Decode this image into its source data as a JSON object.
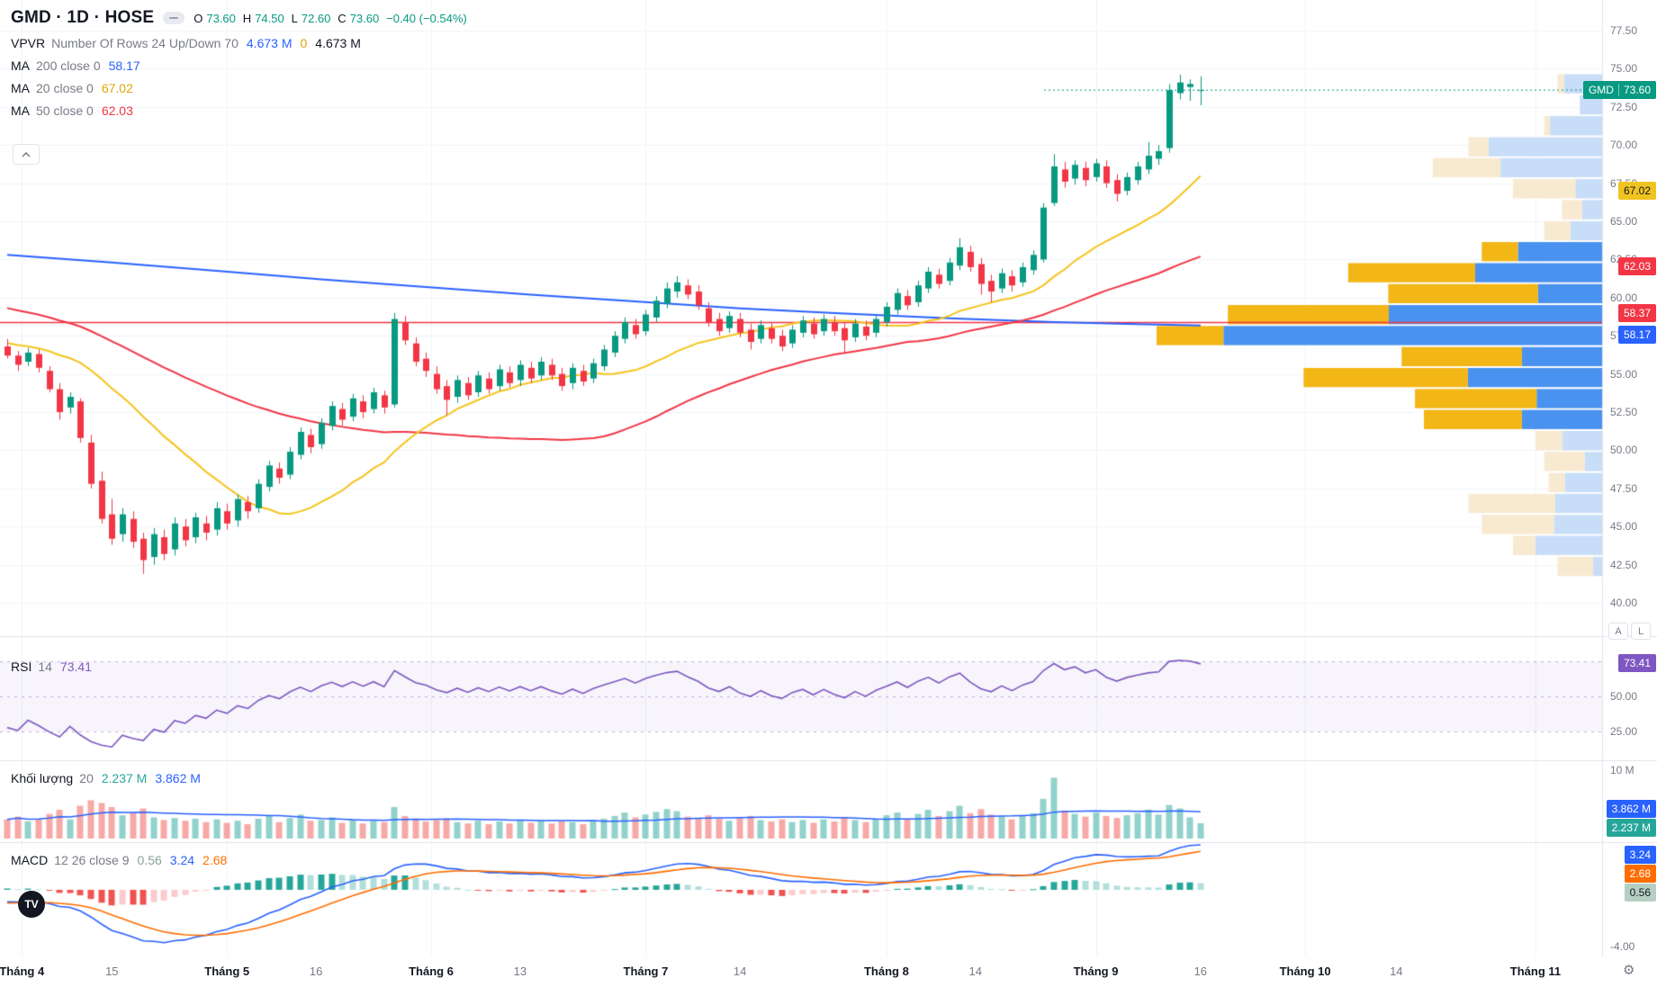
{
  "ui": {
    "title": "GMD · 1D · HOSE",
    "logo_text": "TV",
    "ohlc": {
      "o_label": "O",
      "o": "73.60",
      "h_label": "H",
      "h": "74.50",
      "l_label": "L",
      "l": "72.60",
      "c_label": "C",
      "c": "73.60",
      "change": "−0.40 (−0.54%)"
    },
    "indicators": {
      "vpvr": {
        "name": "VPVR",
        "params": "Number Of Rows 24 Up/Down 70",
        "v1": "4.673 M",
        "v2": "0",
        "v3": "4.673 M"
      },
      "ma200": {
        "name": "MA",
        "params": "200 close 0",
        "value": "58.17"
      },
      "ma20": {
        "name": "MA",
        "params": "20 close 0",
        "value": "67.02"
      },
      "ma50": {
        "name": "MA",
        "params": "50 close 0",
        "value": "62.03"
      },
      "rsi": {
        "name": "RSI",
        "params": "14",
        "value": "73.41"
      },
      "volume": {
        "name": "Khối lượng",
        "params": "20",
        "v1": "2.237 M",
        "v2": "3.862 M"
      },
      "macd": {
        "name": "MACD",
        "params": "12 26 close 9",
        "v1": "0.56",
        "v2": "3.24",
        "v3": "2.68"
      }
    },
    "value_colors": {
      "teal": "#089981",
      "blue": "#2962ff",
      "yellow": "#e0a400",
      "red": "#f23645",
      "purple": "#7e57c2",
      "orange": "#ff6d00",
      "green": "#26a69a",
      "dark": "#131722",
      "pale_green": "#85a294"
    },
    "axis_buttons": {
      "a": "A",
      "l": "L"
    },
    "badges": [
      {
        "panel": "price",
        "value": 73.6,
        "text": "73.60",
        "prefix": "GMD",
        "bg": "#089981",
        "fg": "#ffffff"
      },
      {
        "panel": "price",
        "value": 67.02,
        "text": "67.02",
        "bg": "#f0c420",
        "fg": "#131722"
      },
      {
        "panel": "price",
        "value": 62.03,
        "text": "62.03",
        "bg": "#f23645",
        "fg": "#ffffff"
      },
      {
        "panel": "price",
        "value": 58.37,
        "text": "58.37",
        "bg": "#f23645",
        "fg": "#ffffff",
        "dy": -10
      },
      {
        "panel": "price",
        "value": 58.17,
        "text": "58.17",
        "bg": "#2962ff",
        "fg": "#ffffff",
        "dy": 10
      },
      {
        "panel": "rsi",
        "value": 73.41,
        "text": "73.41",
        "bg": "#7e57c2",
        "fg": "#ffffff"
      },
      {
        "panel": "vol",
        "value": 3.862,
        "text": "3.862 M",
        "bg": "#2962ff",
        "fg": "#ffffff",
        "dy": -4
      },
      {
        "panel": "vol",
        "value": 2.237,
        "text": "2.237 M",
        "bg": "#26a69a",
        "fg": "#ffffff",
        "dy": 5
      },
      {
        "panel": "macd",
        "value": 3.24,
        "text": "3.24",
        "bg": "#2962ff",
        "fg": "#ffffff",
        "dy": 12
      },
      {
        "panel": "macd",
        "value": 2.68,
        "text": "2.68",
        "bg": "#ff6d00",
        "fg": "#ffffff",
        "dy": 24
      },
      {
        "panel": "macd",
        "value": 0.56,
        "text": "0.56",
        "bg": "#b6cfc3",
        "fg": "#131722",
        "dy": 12
      }
    ]
  },
  "chart_data": {
    "type": "candlestick",
    "symbol": "GMD",
    "timeframe": "1D",
    "exchange": "HOSE",
    "title": "GMD · 1D · HOSE",
    "last": {
      "open": 73.6,
      "high": 74.5,
      "low": 72.6,
      "close": 73.6,
      "change": -0.4,
      "change_pct": -0.54
    },
    "price_axis": {
      "min": 40.0,
      "max": 77.5,
      "step": 2.5
    },
    "levels": {
      "hline": 58.37,
      "close_line": 73.6
    },
    "price_labels": [
      "77.50",
      "75.00",
      "72.50",
      "70.00",
      "67.50",
      "65.00",
      "62.50",
      "60.00",
      "57.50",
      "55.00",
      "52.50",
      "50.00",
      "47.50",
      "45.00",
      "42.50",
      "40.00"
    ],
    "rsi_labels": [
      {
        "text": "50.00",
        "v": 50
      },
      {
        "text": "25.00",
        "v": 25
      }
    ],
    "vol_labels": [
      {
        "text": "10 M",
        "v": 10
      }
    ],
    "macd_labels": [
      {
        "text": "-4.00",
        "v": -4
      }
    ],
    "rsi_bands": [
      75,
      50,
      25
    ],
    "x_ticks": [
      {
        "i": 1.4,
        "label": "Tháng 4",
        "major": true
      },
      {
        "i": 10,
        "label": "15",
        "major": false
      },
      {
        "i": 21,
        "label": "Tháng 5",
        "major": true
      },
      {
        "i": 29.5,
        "label": "16",
        "major": false
      },
      {
        "i": 40.5,
        "label": "Tháng 6",
        "major": true
      },
      {
        "i": 49,
        "label": "13",
        "major": false
      },
      {
        "i": 61,
        "label": "Tháng 7",
        "major": true
      },
      {
        "i": 70,
        "label": "14",
        "major": false
      },
      {
        "i": 84,
        "label": "Tháng 8",
        "major": true
      },
      {
        "i": 92.5,
        "label": "14",
        "major": false
      },
      {
        "i": 104,
        "label": "Tháng 9",
        "major": true
      },
      {
        "i": 114,
        "label": "16",
        "major": false
      },
      {
        "i": 124,
        "label": "Tháng 10",
        "major": true
      },
      {
        "i": 132.7,
        "label": "14",
        "major": false
      },
      {
        "i": 146,
        "label": "Tháng 11",
        "major": true
      }
    ],
    "candles": [
      [
        56.8,
        57.3,
        56,
        56.2
      ],
      [
        56.2,
        56.5,
        55.2,
        55.6
      ],
      [
        55.8,
        56.7,
        55.5,
        56.4
      ],
      [
        56.3,
        56.6,
        55.1,
        55.4
      ],
      [
        55.2,
        55.5,
        53.8,
        54
      ],
      [
        54,
        54.4,
        52,
        52.5
      ],
      [
        52.8,
        53.8,
        52.4,
        53.5
      ],
      [
        53.2,
        53.4,
        50.5,
        50.8
      ],
      [
        50.5,
        51,
        47.5,
        47.8
      ],
      [
        48,
        48.6,
        45.2,
        45.5
      ],
      [
        45.8,
        46.8,
        43.8,
        44.2
      ],
      [
        44.5,
        46.2,
        44,
        45.8
      ],
      [
        45.5,
        46,
        43.6,
        44
      ],
      [
        44.2,
        44.6,
        41.9,
        42.8
      ],
      [
        43,
        44.9,
        42.5,
        44.5
      ],
      [
        44.3,
        44.8,
        42.8,
        43.2
      ],
      [
        43.5,
        45.6,
        43.1,
        45.2
      ],
      [
        45,
        45.5,
        43.7,
        44.1
      ],
      [
        44.3,
        45.9,
        43.9,
        45.6
      ],
      [
        45.2,
        45.7,
        44.1,
        44.6
      ],
      [
        44.8,
        46.6,
        44.4,
        46.2
      ],
      [
        46,
        46.5,
        44.8,
        45.2
      ],
      [
        45.4,
        47.1,
        45,
        46.8
      ],
      [
        46.6,
        47,
        45.5,
        46
      ],
      [
        46.2,
        48.1,
        45.9,
        47.8
      ],
      [
        47.6,
        49.3,
        47.3,
        49
      ],
      [
        48.8,
        49.2,
        47.8,
        48.2
      ],
      [
        48.4,
        50.2,
        48.1,
        49.9
      ],
      [
        49.7,
        51.5,
        49.4,
        51.2
      ],
      [
        51,
        51.4,
        49.8,
        50.2
      ],
      [
        50.4,
        52.1,
        50.1,
        51.8
      ],
      [
        51.6,
        53.2,
        51.3,
        52.9
      ],
      [
        52.7,
        53.1,
        51.6,
        52
      ],
      [
        52.2,
        53.7,
        51.9,
        53.4
      ],
      [
        53.2,
        53.6,
        52.1,
        52.5
      ],
      [
        52.7,
        54.1,
        52.4,
        53.8
      ],
      [
        53.6,
        53.9,
        52.4,
        52.8
      ],
      [
        53,
        59,
        52.8,
        58.6
      ],
      [
        58.4,
        58.8,
        56.9,
        57.2
      ],
      [
        57,
        57.4,
        55.5,
        55.8
      ],
      [
        56,
        56.4,
        54.8,
        55.2
      ],
      [
        55,
        55.5,
        53.7,
        54
      ],
      [
        54.2,
        54.6,
        52.3,
        53.3
      ],
      [
        53.5,
        54.9,
        53.1,
        54.6
      ],
      [
        54.4,
        54.8,
        53.3,
        53.6
      ],
      [
        53.8,
        55.2,
        53.5,
        54.9
      ],
      [
        54.7,
        55.1,
        53.7,
        54
      ],
      [
        54.2,
        55.6,
        53.9,
        55.3
      ],
      [
        55.1,
        55.5,
        54.1,
        54.4
      ],
      [
        54.6,
        55.9,
        54.2,
        55.6
      ],
      [
        55.4,
        55.8,
        54.4,
        54.7
      ],
      [
        54.9,
        56.1,
        54.6,
        55.8
      ],
      [
        55.6,
        56,
        54.6,
        54.9
      ],
      [
        55,
        55.4,
        53.9,
        54.2
      ],
      [
        54.4,
        55.7,
        54,
        55.4
      ],
      [
        55.2,
        55.6,
        54.2,
        54.5
      ],
      [
        54.7,
        56,
        54.4,
        55.7
      ],
      [
        55.5,
        56.9,
        55.2,
        56.6
      ],
      [
        56.4,
        57.8,
        56.1,
        57.5
      ],
      [
        57.3,
        58.7,
        57,
        58.4
      ],
      [
        58.2,
        58.6,
        57.3,
        57.6
      ],
      [
        57.8,
        59.2,
        57.5,
        58.9
      ],
      [
        58.7,
        60.1,
        58.4,
        59.8
      ],
      [
        59.6,
        61,
        59.3,
        60.6
      ],
      [
        60.4,
        61.4,
        60,
        61
      ],
      [
        60.8,
        61.2,
        59.9,
        60.2
      ],
      [
        60.4,
        60.8,
        59.2,
        59.5
      ],
      [
        59.3,
        59.7,
        58.1,
        58.4
      ],
      [
        58.6,
        59,
        57.5,
        57.8
      ],
      [
        58,
        59.1,
        57.7,
        58.8
      ],
      [
        58.6,
        59,
        57.4,
        57.7
      ],
      [
        57.9,
        58.3,
        56.6,
        57.1
      ],
      [
        57.3,
        58.5,
        57,
        58.2
      ],
      [
        58,
        58.4,
        57,
        57.3
      ],
      [
        57.5,
        57.9,
        56.5,
        56.8
      ],
      [
        57,
        58.2,
        56.7,
        57.9
      ],
      [
        57.7,
        58.8,
        57.4,
        58.5
      ],
      [
        58.3,
        58.7,
        57.3,
        57.6
      ],
      [
        57.8,
        58.9,
        57.5,
        58.6
      ],
      [
        58.4,
        58.8,
        57.5,
        57.8
      ],
      [
        58,
        58.4,
        56.4,
        57.2
      ],
      [
        57.4,
        58.6,
        57.1,
        58.3
      ],
      [
        58.1,
        58.5,
        57.2,
        57.5
      ],
      [
        57.7,
        58.9,
        57.4,
        58.6
      ],
      [
        58.4,
        59.7,
        58.1,
        59.4
      ],
      [
        59.2,
        60.6,
        58.9,
        60.3
      ],
      [
        60.1,
        60.5,
        59.2,
        59.5
      ],
      [
        59.7,
        61.1,
        59.4,
        60.8
      ],
      [
        60.6,
        62,
        60.3,
        61.7
      ],
      [
        61.5,
        61.9,
        60.6,
        60.9
      ],
      [
        61.1,
        62.6,
        60.8,
        62.3
      ],
      [
        62.1,
        63.9,
        61.8,
        63.3
      ],
      [
        63,
        63.4,
        61.7,
        62
      ],
      [
        62.2,
        62.6,
        60.2,
        60.9
      ],
      [
        61.1,
        61.5,
        59.7,
        60.4
      ],
      [
        60.6,
        61.9,
        60.3,
        61.6
      ],
      [
        61.4,
        61.8,
        60.4,
        60.8
      ],
      [
        61,
        62.3,
        60.7,
        62
      ],
      [
        61.8,
        63.1,
        61.5,
        62.8
      ],
      [
        62.5,
        66.2,
        62.3,
        65.9
      ],
      [
        66.2,
        69.4,
        66,
        68.6
      ],
      [
        68.4,
        68.9,
        67.2,
        67.6
      ],
      [
        67.8,
        69,
        67.4,
        68.7
      ],
      [
        68.5,
        68.9,
        67.3,
        67.7
      ],
      [
        67.9,
        69.1,
        67.6,
        68.8
      ],
      [
        68.6,
        69,
        67.2,
        67.5
      ],
      [
        67.7,
        68.1,
        66.3,
        66.8
      ],
      [
        67,
        68.2,
        66.7,
        67.9
      ],
      [
        67.7,
        68.9,
        67.4,
        68.6
      ],
      [
        68.4,
        70.2,
        68.1,
        69.3
      ],
      [
        69.1,
        70,
        68.7,
        69.6
      ],
      [
        69.8,
        74,
        69.5,
        73.6
      ],
      [
        73.4,
        74.6,
        73,
        74.1
      ],
      [
        73.8,
        74.3,
        72.9,
        74
      ],
      [
        73.6,
        74.5,
        72.6,
        73.6
      ]
    ],
    "volumes_m": [
      2.8,
      3.2,
      2.5,
      2.9,
      3.6,
      4.2,
      2.8,
      4.8,
      5.6,
      5.2,
      4.6,
      3.4,
      3.8,
      4.4,
      3.1,
      2.7,
      3.0,
      2.6,
      2.9,
      2.4,
      2.8,
      2.3,
      2.6,
      2.1,
      2.9,
      3.3,
      2.4,
      3.0,
      3.5,
      2.6,
      2.7,
      3.1,
      2.3,
      2.8,
      2.2,
      2.6,
      2.4,
      4.6,
      3.3,
      2.9,
      2.5,
      2.7,
      3.0,
      2.4,
      2.2,
      2.6,
      2.1,
      2.5,
      2.2,
      2.7,
      2.3,
      2.6,
      2.2,
      2.5,
      2.4,
      2.1,
      2.6,
      2.9,
      3.3,
      3.8,
      3.1,
      3.5,
      3.9,
      4.3,
      4.0,
      3.2,
      3.0,
      3.4,
      2.9,
      2.6,
      3.0,
      3.3,
      2.7,
      2.5,
      2.8,
      2.4,
      2.7,
      2.3,
      2.8,
      2.5,
      3.1,
      2.7,
      2.4,
      2.9,
      3.4,
      3.8,
      2.9,
      3.6,
      4.2,
      3.3,
      4.0,
      4.8,
      3.7,
      4.3,
      3.5,
      3.2,
      2.8,
      3.4,
      3.7,
      5.8,
      8.9,
      4.1,
      3.6,
      3.2,
      3.8,
      3.3,
      3.0,
      3.4,
      3.7,
      4.2,
      3.5,
      4.9,
      4.4,
      3.1,
      2.237
    ],
    "prehistory_closes": [
      63.4,
      63.1,
      63.3,
      62.9,
      62.6,
      62.8,
      62.4,
      62.1,
      62.3,
      61.9,
      61.6,
      61.8,
      61.4,
      61.1,
      61.3,
      60.9,
      60.6,
      60.8,
      60.4,
      60.1,
      60.3,
      59.9,
      59.6,
      59.8,
      59.4,
      59.1,
      59.3,
      58.9,
      58.6,
      58.8,
      58.4,
      58.1,
      58.3,
      57.9,
      57.6,
      57.8,
      57.4,
      57.1,
      57.3,
      56.9,
      56.6,
      56.8,
      56.4,
      56.6,
      56.9,
      56.7,
      56.4,
      56.2,
      56.5,
      56.7
    ],
    "ma200_points": [
      [
        0,
        62.8
      ],
      [
        10,
        62.3
      ],
      [
        20,
        61.75
      ],
      [
        30,
        61.2
      ],
      [
        40,
        60.7
      ],
      [
        50,
        60.2
      ],
      [
        60,
        59.75
      ],
      [
        70,
        59.3
      ],
      [
        80,
        58.95
      ],
      [
        90,
        58.65
      ],
      [
        100,
        58.4
      ],
      [
        107,
        58.28
      ],
      [
        114,
        58.17
      ]
    ],
    "vpvr_rows": [
      {
        "p": 74.7,
        "len": 0.1,
        "up": 0.85,
        "pale": true
      },
      {
        "p": 73.32,
        "len": 0.05,
        "up": 1.0,
        "pale": true
      },
      {
        "p": 71.95,
        "len": 0.13,
        "up": 0.9,
        "pale": true
      },
      {
        "p": 70.57,
        "len": 0.3,
        "up": 0.85,
        "pale": true
      },
      {
        "p": 69.2,
        "len": 0.38,
        "up": 0.6,
        "pale": true
      },
      {
        "p": 67.82,
        "len": 0.2,
        "up": 0.3,
        "pale": true
      },
      {
        "p": 66.45,
        "len": 0.09,
        "up": 0.5,
        "pale": true
      },
      {
        "p": 65.07,
        "len": 0.13,
        "up": 0.55,
        "pale": true
      },
      {
        "p": 63.7,
        "len": 0.27,
        "up": 0.7,
        "pale": false
      },
      {
        "p": 62.32,
        "len": 0.57,
        "up": 0.5,
        "pale": false
      },
      {
        "p": 60.95,
        "len": 0.48,
        "up": 0.3,
        "pale": false
      },
      {
        "p": 59.57,
        "len": 0.84,
        "up": 0.57,
        "pale": false
      },
      {
        "p": 58.2,
        "len": 1.0,
        "up": 0.85,
        "pale": false
      },
      {
        "p": 56.82,
        "len": 0.45,
        "up": 0.4,
        "pale": false
      },
      {
        "p": 55.45,
        "len": 0.67,
        "up": 0.45,
        "pale": false
      },
      {
        "p": 54.07,
        "len": 0.42,
        "up": 0.35,
        "pale": false
      },
      {
        "p": 52.7,
        "len": 0.4,
        "up": 0.45,
        "pale": false
      },
      {
        "p": 51.32,
        "len": 0.15,
        "up": 0.6,
        "pale": true
      },
      {
        "p": 49.95,
        "len": 0.13,
        "up": 0.3,
        "pale": true
      },
      {
        "p": 48.57,
        "len": 0.12,
        "up": 0.7,
        "pale": true
      },
      {
        "p": 47.2,
        "len": 0.3,
        "up": 0.35,
        "pale": true
      },
      {
        "p": 45.82,
        "len": 0.27,
        "up": 0.4,
        "pale": true
      },
      {
        "p": 44.45,
        "len": 0.2,
        "up": 0.75,
        "pale": true
      },
      {
        "p": 43.07,
        "len": 0.1,
        "up": 0.2,
        "pale": true
      }
    ],
    "colors": {
      "up": "#089981",
      "down": "#f23645",
      "ma20": "#f5c51d",
      "ma50": "#f23645",
      "ma200": "#2962ff",
      "rsi": "#7e57c2",
      "vol_ma": "#2962ff",
      "macd": "#2962ff",
      "signal": "#ff6d00",
      "hist_up": "#26a69a",
      "hist_up_weak": "#b2dfdb",
      "hist_down": "#ef5350",
      "hist_down_weak": "#fccbcd",
      "vol_up": "rgba(38,166,154,0.5)",
      "vol_down": "rgba(239,83,80,0.5)",
      "vpvr_up": "#4a92f0",
      "vpvr_down": "#f2b616",
      "vpvr_up_pale": "#c7ddf8",
      "vpvr_down_pale": "#f8ead1",
      "hline": "#f23645",
      "grid": "#f0f3fa",
      "sep": "#e0e3eb",
      "axis_text": "#787b86"
    }
  }
}
